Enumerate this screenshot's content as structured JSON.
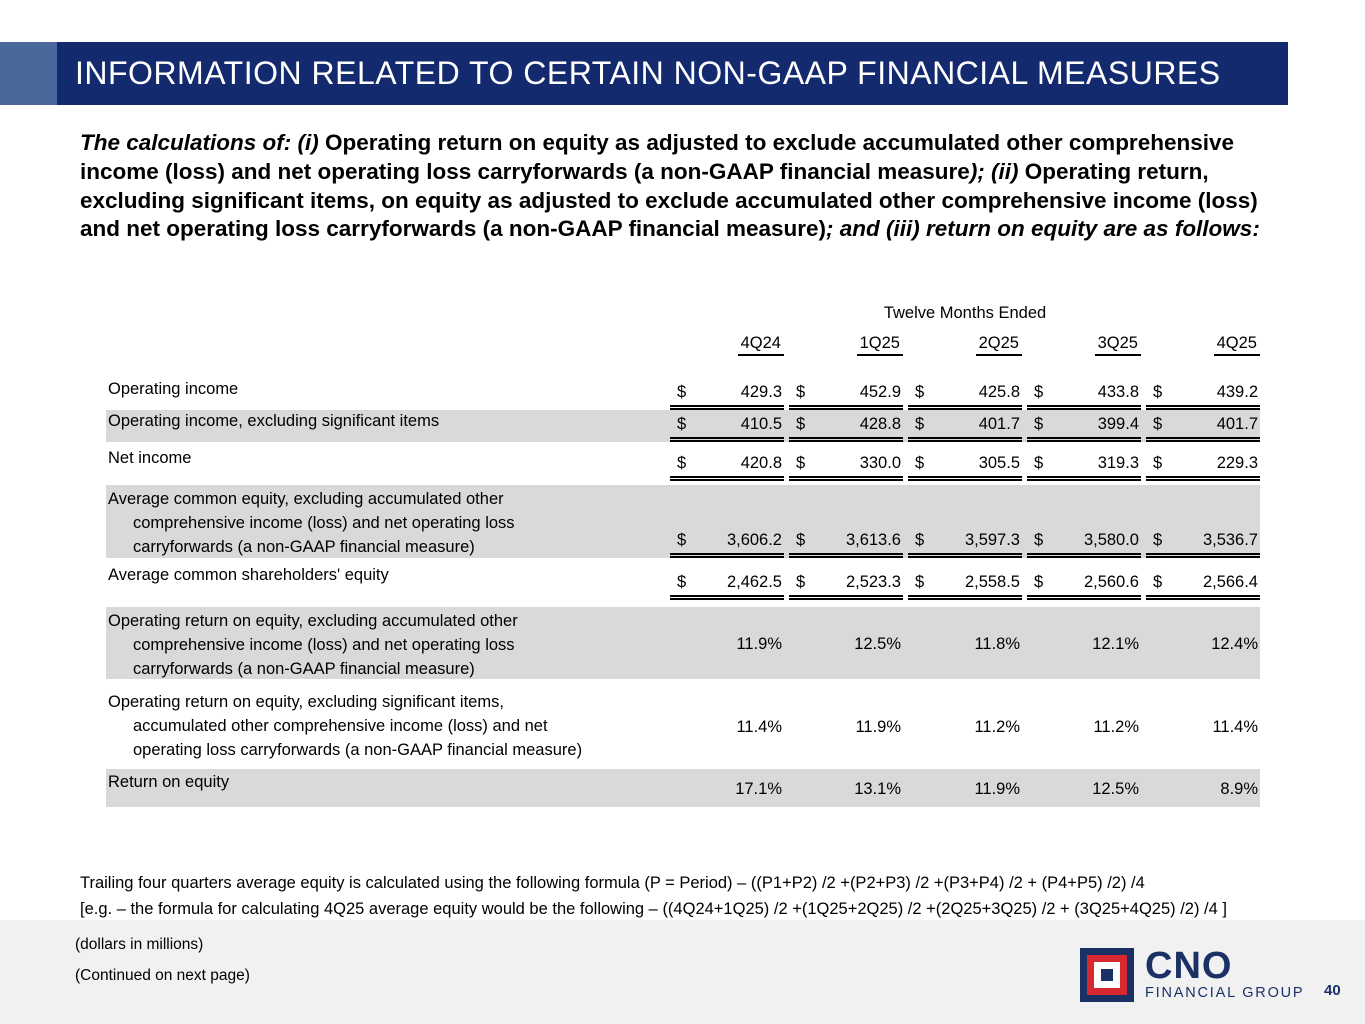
{
  "header": {
    "title": "INFORMATION RELATED TO CERTAIN NON-GAAP FINANCIAL MEASURES"
  },
  "intro": {
    "segments": [
      "The calculations of: (i) ",
      "Operating return on equity as adjusted to exclude accumulated other comprehensive income (loss) and net operating loss carryforwards (a non-GAAP financial measure",
      "); (ii) ",
      "Operating return, excluding significant items, on equity as adjusted to exclude accumulated other comprehensive income (loss) and net operating loss carryforwards (a non-GAAP financial measure)",
      "; and (iii) return on equity are as follows:"
    ]
  },
  "table": {
    "period_header": "Twelve Months Ended",
    "columns": [
      "4Q24",
      "1Q25",
      "2Q25",
      "3Q25",
      "4Q25"
    ],
    "currency": "$",
    "rows": [
      {
        "label_lines": [
          "Operating income"
        ],
        "type": "money",
        "values": [
          "429.3",
          "452.9",
          "425.8",
          "433.8",
          "439.2"
        ],
        "shaded": false
      },
      {
        "label_lines": [
          "Operating income, excluding significant items"
        ],
        "type": "money",
        "values": [
          "410.5",
          "428.8",
          "401.7",
          "399.4",
          "401.7"
        ],
        "shaded": true
      },
      {
        "label_lines": [
          "Net income"
        ],
        "type": "money",
        "values": [
          "420.8",
          "330.0",
          "305.5",
          "319.3",
          "229.3"
        ],
        "shaded": false
      },
      {
        "label_lines": [
          "Average common equity, excluding accumulated other",
          "comprehensive income (loss) and net operating loss",
          "carryforwards (a non-GAAP financial measure)"
        ],
        "type": "money",
        "values": [
          "3,606.2",
          "3,613.6",
          "3,597.3",
          "3,580.0",
          "3,536.7"
        ],
        "shaded": true
      },
      {
        "label_lines": [
          "Average common shareholders' equity"
        ],
        "type": "money",
        "values": [
          "2,462.5",
          "2,523.3",
          "2,558.5",
          "2,560.6",
          "2,566.4"
        ],
        "shaded": false
      },
      {
        "label_lines": [
          "Operating return on equity, excluding accumulated other",
          "comprehensive income (loss) and net operating loss",
          "carryforwards (a non-GAAP financial measure)"
        ],
        "type": "percent",
        "values": [
          "11.9%",
          "12.5%",
          "11.8%",
          "12.1%",
          "12.4%"
        ],
        "shaded": true
      },
      {
        "label_lines": [
          "Operating return on equity, excluding significant items,",
          "accumulated other comprehensive income (loss) and net",
          "operating loss carryforwards (a non-GAAP financial measure)"
        ],
        "type": "percent",
        "values": [
          "11.4%",
          "11.9%",
          "11.2%",
          "11.2%",
          "11.4%"
        ],
        "shaded": false
      },
      {
        "label_lines": [
          "Return on equity"
        ],
        "type": "percent",
        "values": [
          "17.1%",
          "13.1%",
          "11.9%",
          "12.5%",
          "8.9%"
        ],
        "shaded": true
      }
    ]
  },
  "footnotes": {
    "formula_line1": "Trailing four quarters average equity is calculated using the following formula (P = Period) – ((P1+P2) /2 +(P2+P3) /2 +(P3+P4) /2 + (P4+P5) /2) /4",
    "formula_line2": "[e.g. – the formula for calculating 4Q25 average equity would be the following – ((4Q24+1Q25) /2 +(1Q25+2Q25) /2 +(2Q25+3Q25) /2 + (3Q25+4Q25) /2) /4 ]"
  },
  "footer": {
    "dollars_note": "(dollars in millions)",
    "continued_note": "(Continued on next page)",
    "logo_text": "CNO",
    "logo_subtext": "FINANCIAL GROUP",
    "page_number": "40"
  },
  "colors": {
    "header_navy": "#142a6f",
    "accent_blue": "#4b689b",
    "row_shade": "#d9d9d9",
    "footer_bg": "#f1f1f2",
    "logo_navy": "#1b3166",
    "logo_red": "#d7282f"
  }
}
